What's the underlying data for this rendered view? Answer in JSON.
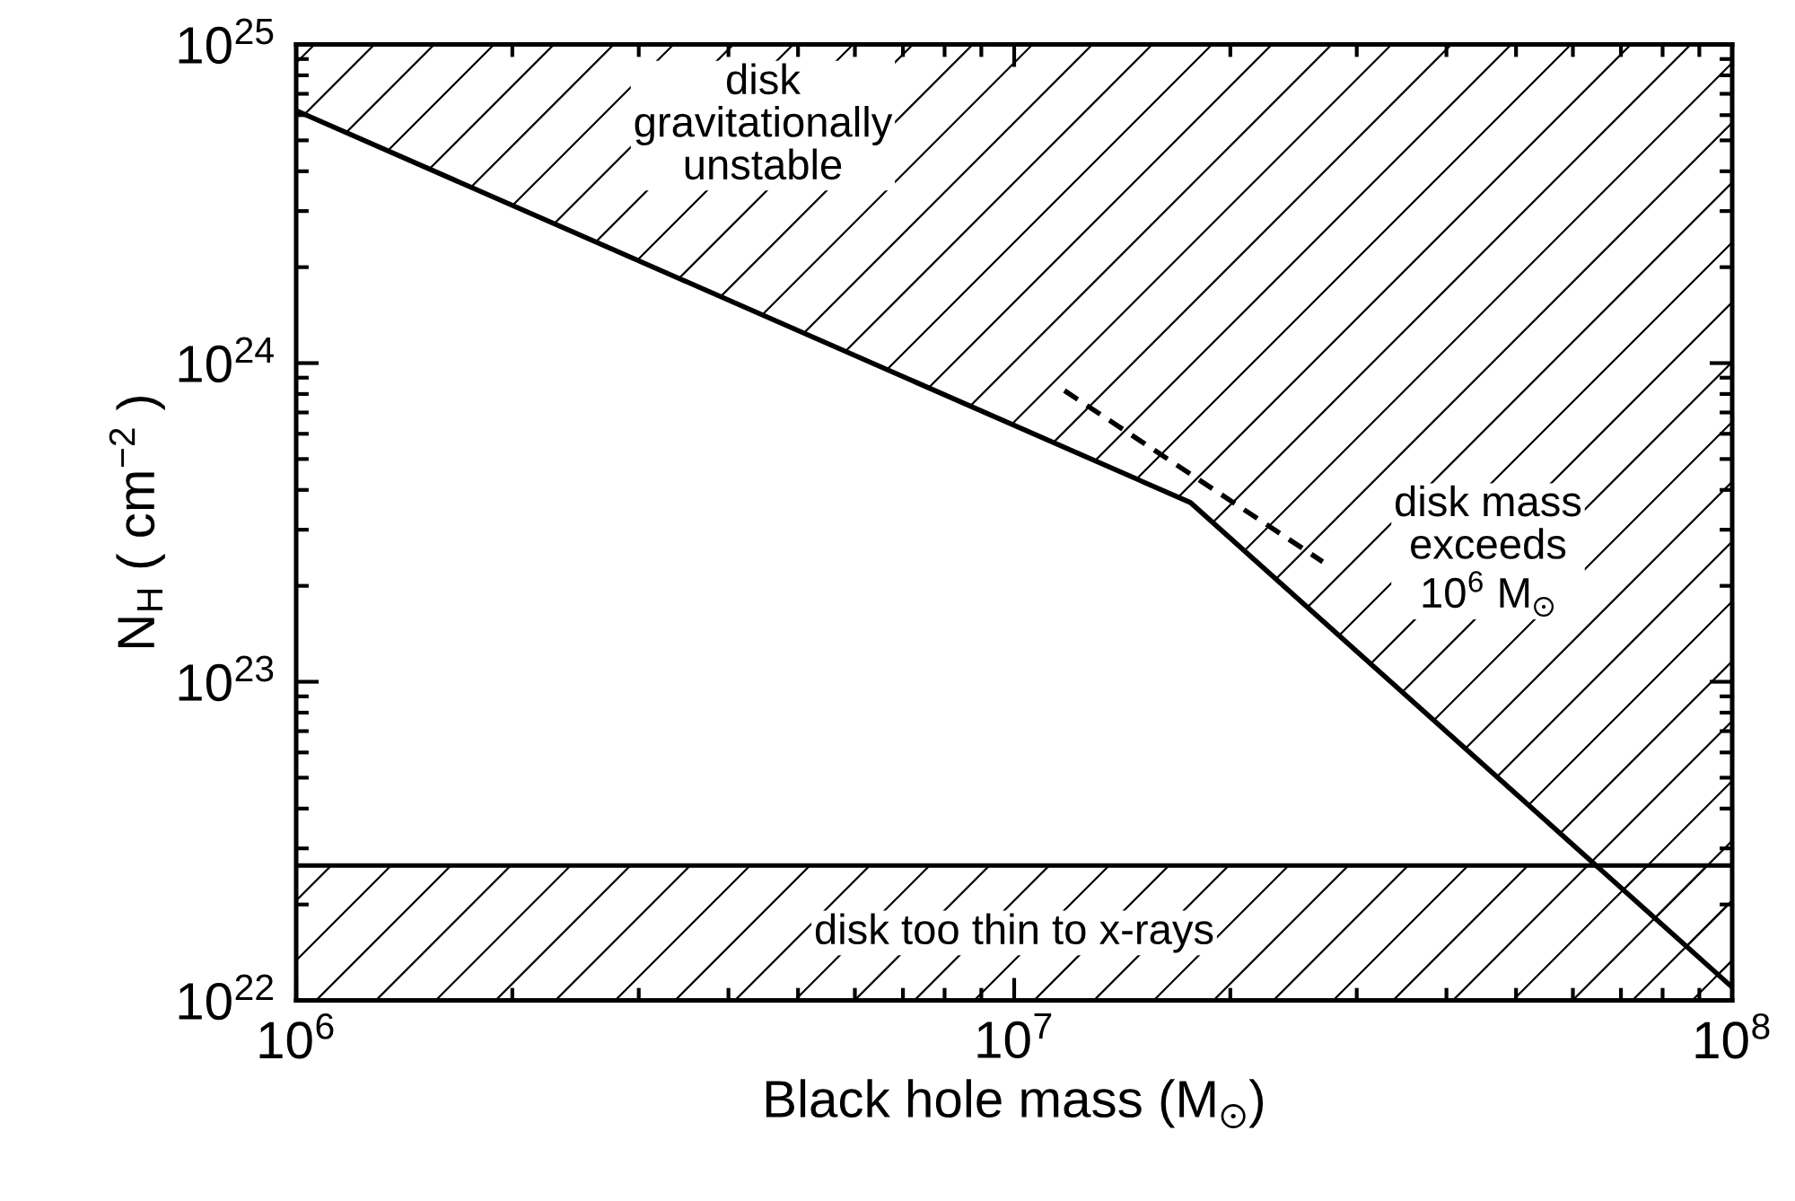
{
  "chart_data": {
    "type": "line",
    "xlabel": "Black hole mass (M$_{⊙}$)",
    "ylabel": "N$_{H}$ ( cm$^{−2}$ )",
    "log": "xy",
    "xlim": [
      1000000.0,
      100000000.0
    ],
    "xticks": [
      {
        "value": 1000000.0,
        "label": "10$^{6}$"
      },
      {
        "value": 10000000.0,
        "label": "10$^{7}$"
      },
      {
        "value": 100000000.0,
        "label": "10$^{8}$"
      }
    ],
    "ylim": [
      1e+22,
      1e+25
    ],
    "yticks": [
      {
        "value": 1e+22,
        "label": "10$^{22}$"
      },
      {
        "value": 1e+23,
        "label": "10$^{23}$"
      },
      {
        "value": 1e+24,
        "label": "10$^{24}$"
      },
      {
        "value": 1e+25,
        "label": "10$^{25}$"
      }
    ],
    "grid": false,
    "legend": false,
    "marker": "none",
    "series": [
      {
        "color": "#000000",
        "line_style": "solid",
        "x": [
          1000000.0,
          17600000.0,
          100000000.0
        ],
        "values": [
          6.2e+24,
          3.65e+23,
          1.1e+22
        ],
        "lower": [
          6.2e+24,
          3.65e+23,
          1.1e+22
        ],
        "upper": [
          1e+25,
          1e+25,
          1e+25
        ]
      },
      {
        "color": "#000000",
        "line_style": "dashed",
        "x": [
          11750000.0,
          26900000.0
        ],
        "values": [
          8.2e+23,
          2.38e+23
        ]
      }
    ],
    "ref_lines": [
      {
        "axis": "y",
        "value": 2.65e+22,
        "color": "#000000",
        "line_style": "solid"
      }
    ],
    "bands": [
      {
        "axis": "y",
        "from": 1e+22,
        "to": 2.65e+22,
        "label": "disk too thin to x-rays",
        "color": "#000000"
      }
    ],
    "annotations": [
      "disk\ngravitationally\nunstable",
      "disk mass\nexceeds\n10$^{6}$ M$_{⊙}$"
    ]
  }
}
